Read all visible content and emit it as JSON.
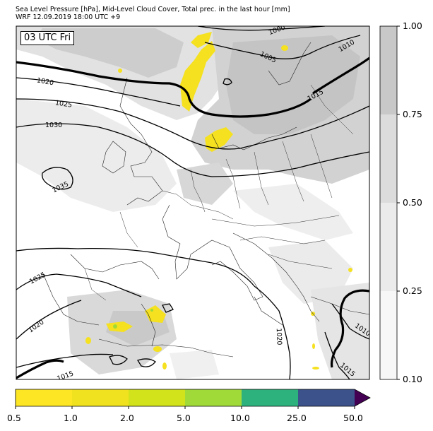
{
  "title_line1": "Sea Level Pressure [hPa], Mid-Level Cloud Cover, Total prec. in the last hour [mm]",
  "title_line2": "WRF 12.09.2019 18:00 UTC +9",
  "time_label": "03 UTC Fri",
  "isobar_labels": [
    "1000",
    "1005",
    "1010",
    "1015",
    "1020",
    "1025",
    "1030",
    "1035",
    "1025",
    "1020",
    "1015",
    "1020",
    "1010",
    "1015"
  ],
  "cloud_colorbar": {
    "ticks": [
      "1.00",
      "0.75",
      "0.50",
      "0.25",
      "0.10"
    ],
    "colors": [
      "#c8c8c8",
      "#dcdcdc",
      "#ebebeb",
      "#f7f7f7"
    ]
  },
  "precip_colorbar": {
    "ticks": [
      "0.5",
      "1.0",
      "2.0",
      "5.0",
      "10.0",
      "25.0",
      "50.0"
    ],
    "colors": [
      "#fde725",
      "#f0e21e",
      "#d2e21b",
      "#a0da39",
      "#2db27d",
      "#3b528b",
      "#440154"
    ]
  }
}
